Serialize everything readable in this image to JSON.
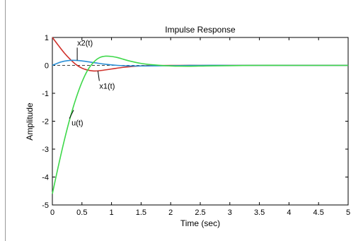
{
  "chart_data": {
    "type": "line",
    "title": "Impulse Response",
    "xlabel": "Time (sec)",
    "ylabel": "Amplitude",
    "xlim": [
      0,
      5
    ],
    "ylim": [
      -5,
      1
    ],
    "xticks": [
      "0",
      "0.5",
      "1",
      "1.5",
      "2",
      "2.5",
      "3",
      "3.5",
      "4",
      "4.5",
      "5"
    ],
    "yticks": [
      "1",
      "0",
      "-1",
      "-2",
      "-3",
      "-4",
      "-5"
    ],
    "xtick_values": [
      0,
      0.5,
      1,
      1.5,
      2,
      2.5,
      3,
      3.5,
      4,
      4.5,
      5
    ],
    "ytick_values": [
      1,
      0,
      -1,
      -2,
      -3,
      -4,
      -5
    ],
    "grid": false,
    "zero_line": true,
    "series": [
      {
        "name": "x1(t)",
        "color": "#d0302a",
        "x": [
          0,
          0.1,
          0.2,
          0.3,
          0.4,
          0.5,
          0.6,
          0.7,
          0.8,
          1.0,
          1.2,
          1.4,
          1.6,
          2.0,
          2.5,
          3.0,
          3.5,
          4.0,
          5.0
        ],
        "y": [
          1.0,
          0.72,
          0.45,
          0.22,
          0.03,
          -0.1,
          -0.17,
          -0.2,
          -0.19,
          -0.13,
          -0.07,
          -0.03,
          -0.01,
          0.0,
          0.0,
          0.0,
          0.0,
          0.0,
          0.0
        ]
      },
      {
        "name": "x2(t)",
        "color": "#2a8fd6",
        "x": [
          0,
          0.1,
          0.2,
          0.3,
          0.4,
          0.5,
          0.7,
          0.9,
          1.1,
          1.3,
          1.6,
          2.0,
          2.5,
          3.0,
          3.5,
          5.0
        ],
        "y": [
          0.0,
          0.09,
          0.15,
          0.18,
          0.18,
          0.16,
          0.1,
          0.04,
          0.0,
          -0.02,
          -0.02,
          -0.01,
          0.0,
          0.0,
          0.0,
          0.0
        ]
      },
      {
        "name": "u(t)",
        "color": "#3ed84a",
        "x": [
          0,
          0.1,
          0.2,
          0.3,
          0.4,
          0.5,
          0.6,
          0.7,
          0.8,
          0.9,
          1.0,
          1.1,
          1.2,
          1.3,
          1.5,
          1.7,
          2.0,
          2.3,
          2.6,
          3.0,
          3.5,
          4.0,
          5.0
        ],
        "y": [
          -4.6,
          -3.62,
          -2.7,
          -1.88,
          -1.18,
          -0.6,
          -0.16,
          0.12,
          0.28,
          0.33,
          0.32,
          0.28,
          0.22,
          0.16,
          0.07,
          0.02,
          -0.02,
          -0.03,
          -0.02,
          -0.01,
          0.0,
          0.0,
          0.0
        ]
      }
    ],
    "annotations": [
      {
        "text": "x2(t)",
        "series": "x2(t)",
        "at": [
          0.42,
          0.18
        ]
      },
      {
        "text": "x1(t)",
        "series": "x1(t)",
        "at": [
          0.77,
          -0.2
        ]
      },
      {
        "text": "u(t)",
        "series": "u(t)",
        "at": [
          0.36,
          -1.6
        ]
      }
    ]
  }
}
